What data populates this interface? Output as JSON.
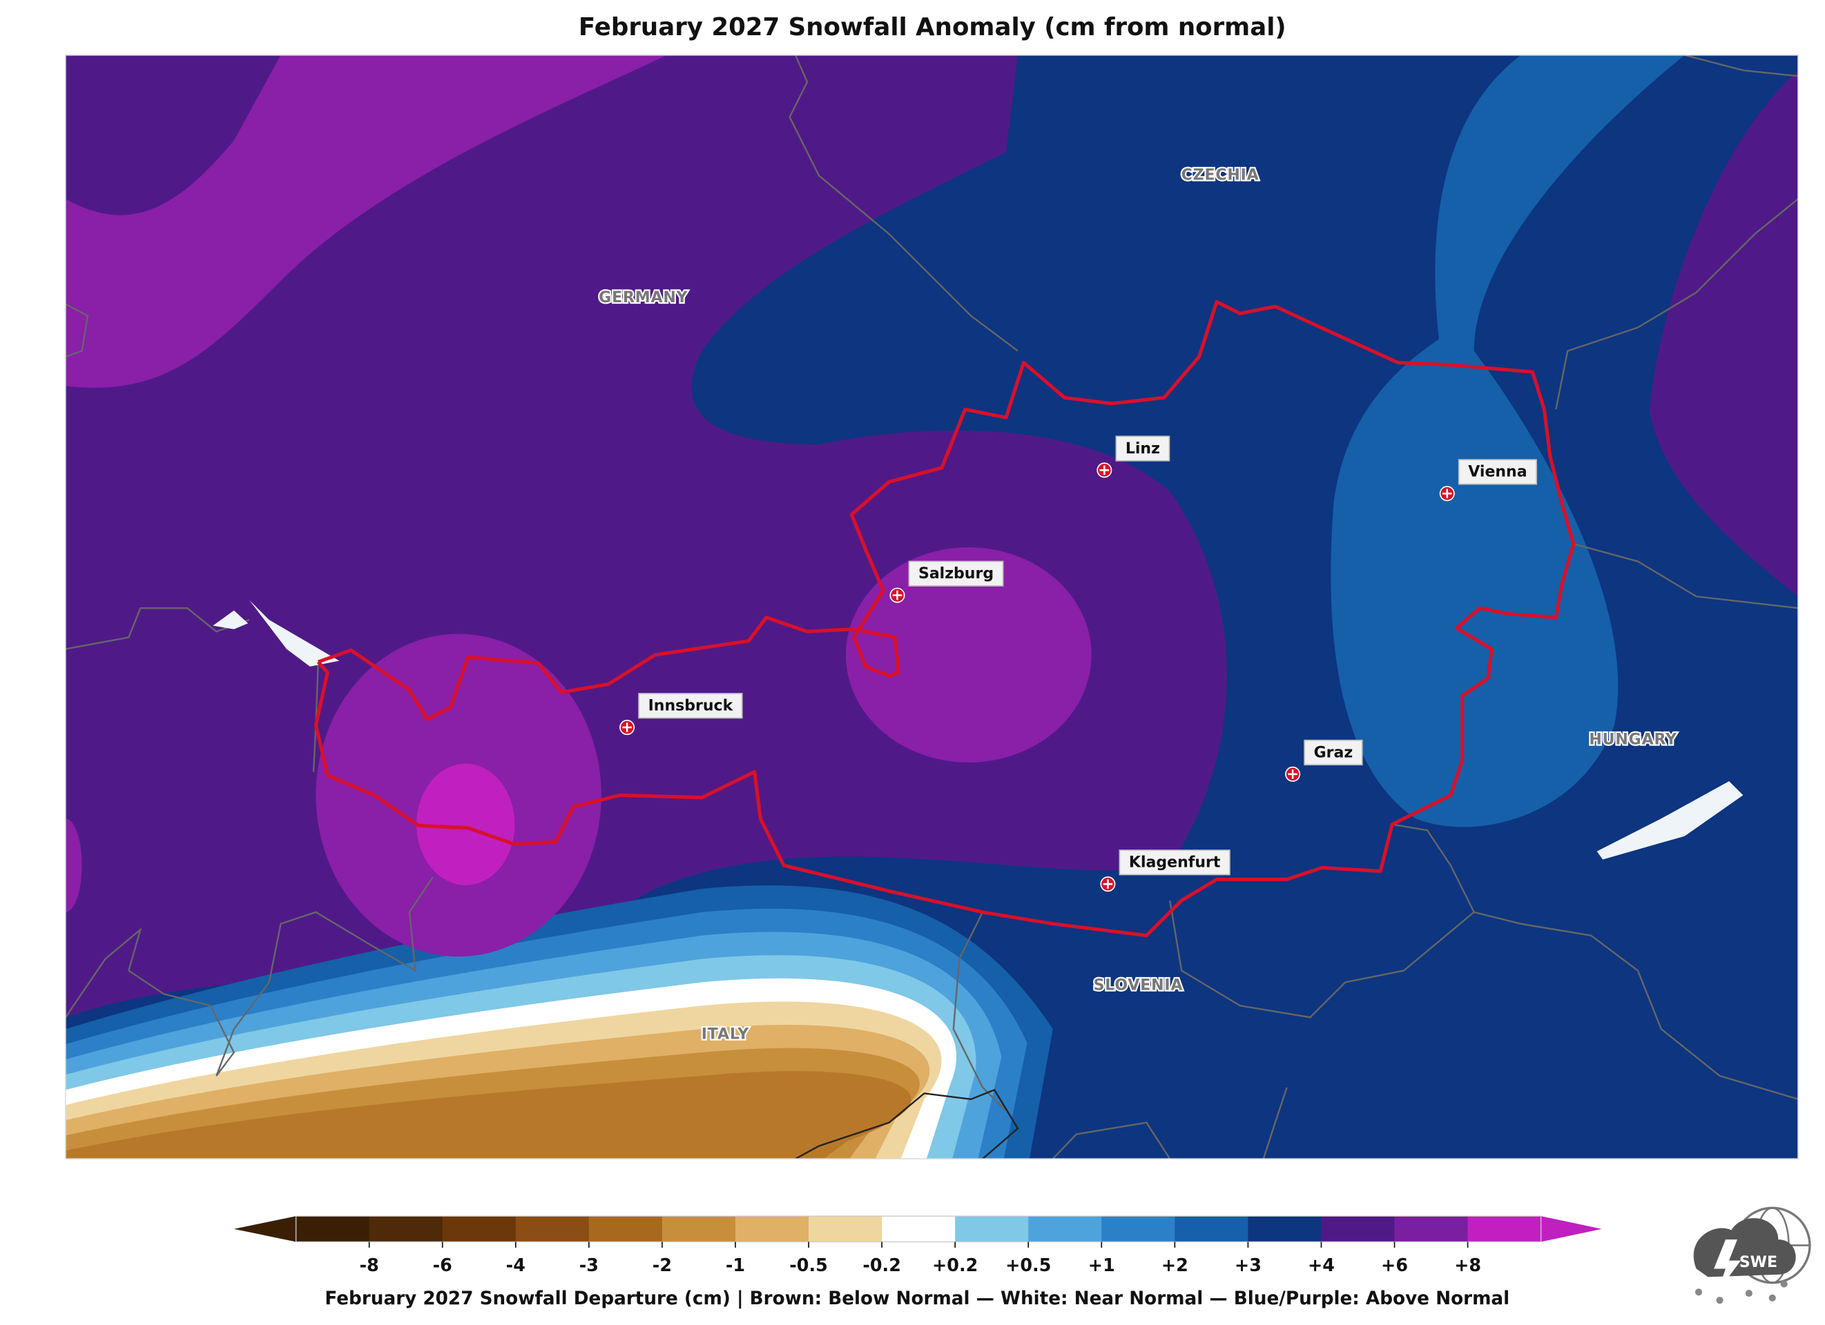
{
  "title": "February 2027 Snowfall Anomaly (cm from normal)",
  "countries": [
    "CZECHIA",
    "GERMANY",
    "HUNGARY",
    "SLOVENIA",
    "ITALY"
  ],
  "cities": [
    "Linz",
    "Vienna",
    "Salzburg",
    "Innsbruck",
    "Graz",
    "Klagenfurt"
  ],
  "colorbar": {
    "ticks": [
      "-8",
      "-6",
      "-4",
      "-3",
      "-2",
      "-1",
      "-0.5",
      "-0.2",
      "+0.2",
      "+0.5",
      "+1",
      "+2",
      "+3",
      "+4",
      "+6",
      "+8"
    ],
    "colors": [
      "#3a1f05",
      "#4f2a08",
      "#6b380b",
      "#8a4d14",
      "#a8691f",
      "#c78f3c",
      "#dfb066",
      "#efd6a0",
      "#ffffff",
      "#7fc8e8",
      "#4ea3dc",
      "#2c80c8",
      "#1560a8",
      "#0d3580",
      "#4f1a87",
      "#7a1fa0",
      "#c020c0"
    ],
    "caption": "February 2027 Snowfall Departure (cm)  |  Brown: Below Normal  —  White: Near Normal  —  Blue/Purple: Above Normal"
  },
  "logo": "SWE"
}
